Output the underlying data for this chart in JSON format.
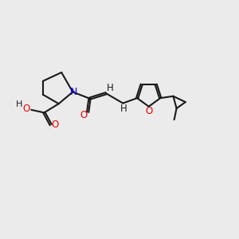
{
  "bg_color": "#ebebeb",
  "atom_colors": {
    "C": "#1a1a1a",
    "N": "#0000ee",
    "O": "#ee0000",
    "H": "#1a1a1a"
  },
  "bond_lw": 1.5,
  "font_size": 8.5,
  "fig_size": [
    3.0,
    3.0
  ],
  "dpi": 100
}
